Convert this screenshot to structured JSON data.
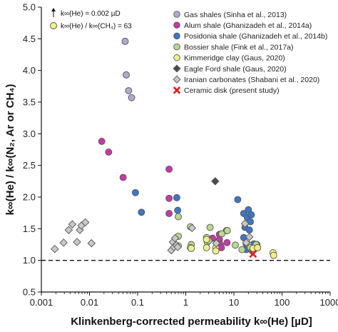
{
  "chart_data": {
    "type": "scatter",
    "xlabel": "Klinkenberg-corrected permeability k∞(He) [µD]",
    "ylabel": "k∞(He) / k∞(N₂, Ar or CH₄)",
    "x_scale": "log",
    "xlim": [
      0.001,
      1000
    ],
    "ylim": [
      0.5,
      5.0
    ],
    "x_ticks": [
      {
        "value": 0.001,
        "label": "0.001"
      },
      {
        "value": 0.01,
        "label": "0.01"
      },
      {
        "value": 0.1,
        "label": "0.1"
      },
      {
        "value": 1,
        "label": "1"
      },
      {
        "value": 10,
        "label": "10"
      },
      {
        "value": 100,
        "label": "100"
      },
      {
        "value": 1000,
        "label": "1000"
      }
    ],
    "y_ticks": [
      {
        "value": 0.5,
        "label": "0.5"
      },
      {
        "value": 1.0,
        "label": "1.0"
      },
      {
        "value": 1.5,
        "label": "1.5"
      },
      {
        "value": 2.0,
        "label": "2.0"
      },
      {
        "value": 2.5,
        "label": "2.5"
      },
      {
        "value": 3.0,
        "label": "3.0"
      },
      {
        "value": 3.5,
        "label": "3.5"
      },
      {
        "value": 4.0,
        "label": "4.0"
      },
      {
        "value": 4.5,
        "label": "4.5"
      },
      {
        "value": 5.0,
        "label": "5.0"
      }
    ],
    "reference_line": {
      "y": 1.0,
      "style": "dashed"
    },
    "annotations": [
      {
        "text": "k∞(He) = 0.002 µD",
        "marker": "arrow"
      },
      {
        "text": "k∞(He) / k∞(CH₄) = 63",
        "marker": "circle",
        "color": "#f0f08a"
      }
    ],
    "legend_position": "top-right",
    "series": [
      {
        "name": "Gas shales (Sinha et al., 2013)",
        "marker": "circle",
        "color": "#b3a7cf",
        "points": [
          [
            0.055,
            4.46
          ],
          [
            0.058,
            3.93
          ],
          [
            0.065,
            3.68
          ],
          [
            0.075,
            3.57
          ]
        ]
      },
      {
        "name": "Alum shale (Ghanizadeh et al., 2014a)",
        "marker": "circle",
        "color": "#c63aa6",
        "points": [
          [
            0.018,
            2.88
          ],
          [
            0.025,
            2.71
          ],
          [
            0.05,
            2.31
          ],
          [
            0.45,
            2.44
          ],
          [
            0.45,
            1.98
          ],
          [
            0.45,
            1.74
          ],
          [
            3.6,
            1.35
          ],
          [
            4.5,
            1.28
          ],
          [
            5.0,
            1.41
          ],
          [
            5.0,
            1.33
          ],
          [
            5.2,
            1.25
          ],
          [
            5.5,
            1.2
          ],
          [
            7.0,
            1.47
          ],
          [
            7.2,
            1.28
          ]
        ]
      },
      {
        "name": "Posidonia shale (Ghanizadeh et al., 2014b)",
        "marker": "circle",
        "color": "#3d77c1",
        "points": [
          [
            0.09,
            2.07
          ],
          [
            0.12,
            1.76
          ],
          [
            0.65,
            1.99
          ],
          [
            0.68,
            1.79
          ],
          [
            12,
            1.96
          ],
          [
            16,
            1.74
          ],
          [
            17,
            1.52
          ],
          [
            18,
            1.26
          ],
          [
            19,
            1.68
          ],
          [
            20,
            1.8
          ],
          [
            21,
            1.48
          ],
          [
            22,
            1.61
          ],
          [
            23,
            1.72
          ],
          [
            26,
            1.26
          ],
          [
            30,
            1.25
          ],
          [
            16,
            1.36
          ],
          [
            18,
            1.17
          ]
        ]
      },
      {
        "name": "Bossier shale (Fink et al., 2017a)",
        "marker": "circle",
        "color": "#b8d88e",
        "points": [
          [
            0.7,
            1.69
          ],
          [
            0.7,
            1.38
          ],
          [
            1.25,
            1.53
          ],
          [
            1.3,
            1.25
          ],
          [
            2.7,
            1.36
          ],
          [
            2.8,
            1.29
          ],
          [
            3.2,
            1.52
          ],
          [
            3.0,
            1.31
          ],
          [
            5.6,
            1.42
          ],
          [
            7.3,
            1.47
          ],
          [
            10.7,
            1.24
          ],
          [
            14.7,
            1.17
          ],
          [
            20,
            1.25
          ],
          [
            22,
            1.2
          ],
          [
            24,
            1.15
          ],
          [
            29,
            1.25
          ],
          [
            31,
            1.2
          ]
        ]
      },
      {
        "name": "Kimmeridge clay (Gaus, 2020)",
        "marker": "circle",
        "color": "#f0f08a",
        "points": [
          [
            0.7,
            1.23
          ],
          [
            1.25,
            1.2
          ],
          [
            1.3,
            1.19
          ],
          [
            2.7,
            1.33
          ],
          [
            2.7,
            1.2
          ],
          [
            4.2,
            1.2
          ],
          [
            4.2,
            1.15
          ],
          [
            25,
            1.19
          ],
          [
            31,
            1.2
          ],
          [
            65,
            1.12
          ],
          [
            67,
            1.08
          ]
        ]
      },
      {
        "name": "Eagle Ford shale (Gaus, 2020)",
        "marker": "diamond",
        "color": "#4a4a4a",
        "points": [
          [
            4.1,
            2.25
          ]
        ]
      },
      {
        "name": "Iranian carbonates (Shabani et al., 2020)",
        "marker": "diamond",
        "color": "#c9c9c9",
        "points": [
          [
            0.0019,
            1.18
          ],
          [
            0.0029,
            1.28
          ],
          [
            0.0037,
            1.48
          ],
          [
            0.0044,
            1.57
          ],
          [
            0.0055,
            1.29
          ],
          [
            0.0063,
            1.48
          ],
          [
            0.0068,
            1.55
          ],
          [
            0.0082,
            1.6
          ],
          [
            0.011,
            1.27
          ],
          [
            0.5,
            1.16
          ],
          [
            0.54,
            1.29
          ],
          [
            0.57,
            1.21
          ],
          [
            0.6,
            1.35
          ],
          [
            0.64,
            1.24
          ],
          [
            0.68,
            1.21
          ],
          [
            1.35,
            1.51
          ],
          [
            4.3,
            1.27
          ],
          [
            17,
            1.58
          ],
          [
            18,
            1.28
          ],
          [
            21,
            1.37
          ]
        ]
      },
      {
        "name": "Ceramic disk (present study)",
        "marker": "x",
        "color": "#e3181f",
        "points": [
          [
            25,
            1.1
          ]
        ]
      }
    ]
  }
}
